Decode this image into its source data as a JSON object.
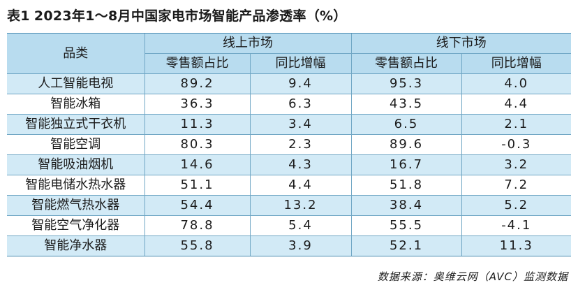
{
  "title": {
    "prefix": "表1",
    "text": "2023年1～8月中国家电市场智能产品渗透率（%）"
  },
  "table": {
    "header": {
      "category": "品类",
      "online_group": "线上市场",
      "offline_group": "线下市场",
      "online_share": "零售额占比",
      "online_yoy": "同比增幅",
      "offline_share": "零售额占比",
      "offline_yoy": "同比增幅"
    },
    "rows": [
      {
        "name": "人工智能电视",
        "online_share": "89.2",
        "online_yoy": "9.4",
        "offline_share": "95.3",
        "offline_yoy": "4.0"
      },
      {
        "name": "智能冰箱",
        "online_share": "36.3",
        "online_yoy": "6.3",
        "offline_share": "43.5",
        "offline_yoy": "4.4"
      },
      {
        "name": "智能独立式干衣机",
        "online_share": "11.3",
        "online_yoy": "3.4",
        "offline_share": "6.5",
        "offline_yoy": "2.1"
      },
      {
        "name": "智能空调",
        "online_share": "80.3",
        "online_yoy": "2.3",
        "offline_share": "89.6",
        "offline_yoy": "-0.3"
      },
      {
        "name": "智能吸油烟机",
        "online_share": "14.6",
        "online_yoy": "4.3",
        "offline_share": "16.7",
        "offline_yoy": "3.2"
      },
      {
        "name": "智能电储水热水器",
        "online_share": "51.1",
        "online_yoy": "4.4",
        "offline_share": "51.8",
        "offline_yoy": "7.2"
      },
      {
        "name": "智能燃气热水器",
        "online_share": "54.4",
        "online_yoy": "13.2",
        "offline_share": "38.4",
        "offline_yoy": "5.2"
      },
      {
        "name": "智能空气净化器",
        "online_share": "78.8",
        "online_yoy": "5.4",
        "offline_share": "55.5",
        "offline_yoy": "-4.1"
      },
      {
        "name": "智能净水器",
        "online_share": "55.8",
        "online_yoy": "3.9",
        "offline_share": "52.1",
        "offline_yoy": "11.3"
      }
    ]
  },
  "source": "数据来源：奥维云网（AVC）监测数据",
  "colors": {
    "header_bg": "#b8dcef",
    "shaded_row_bg": "#d2eaf6",
    "border": "#6fa6c4"
  }
}
